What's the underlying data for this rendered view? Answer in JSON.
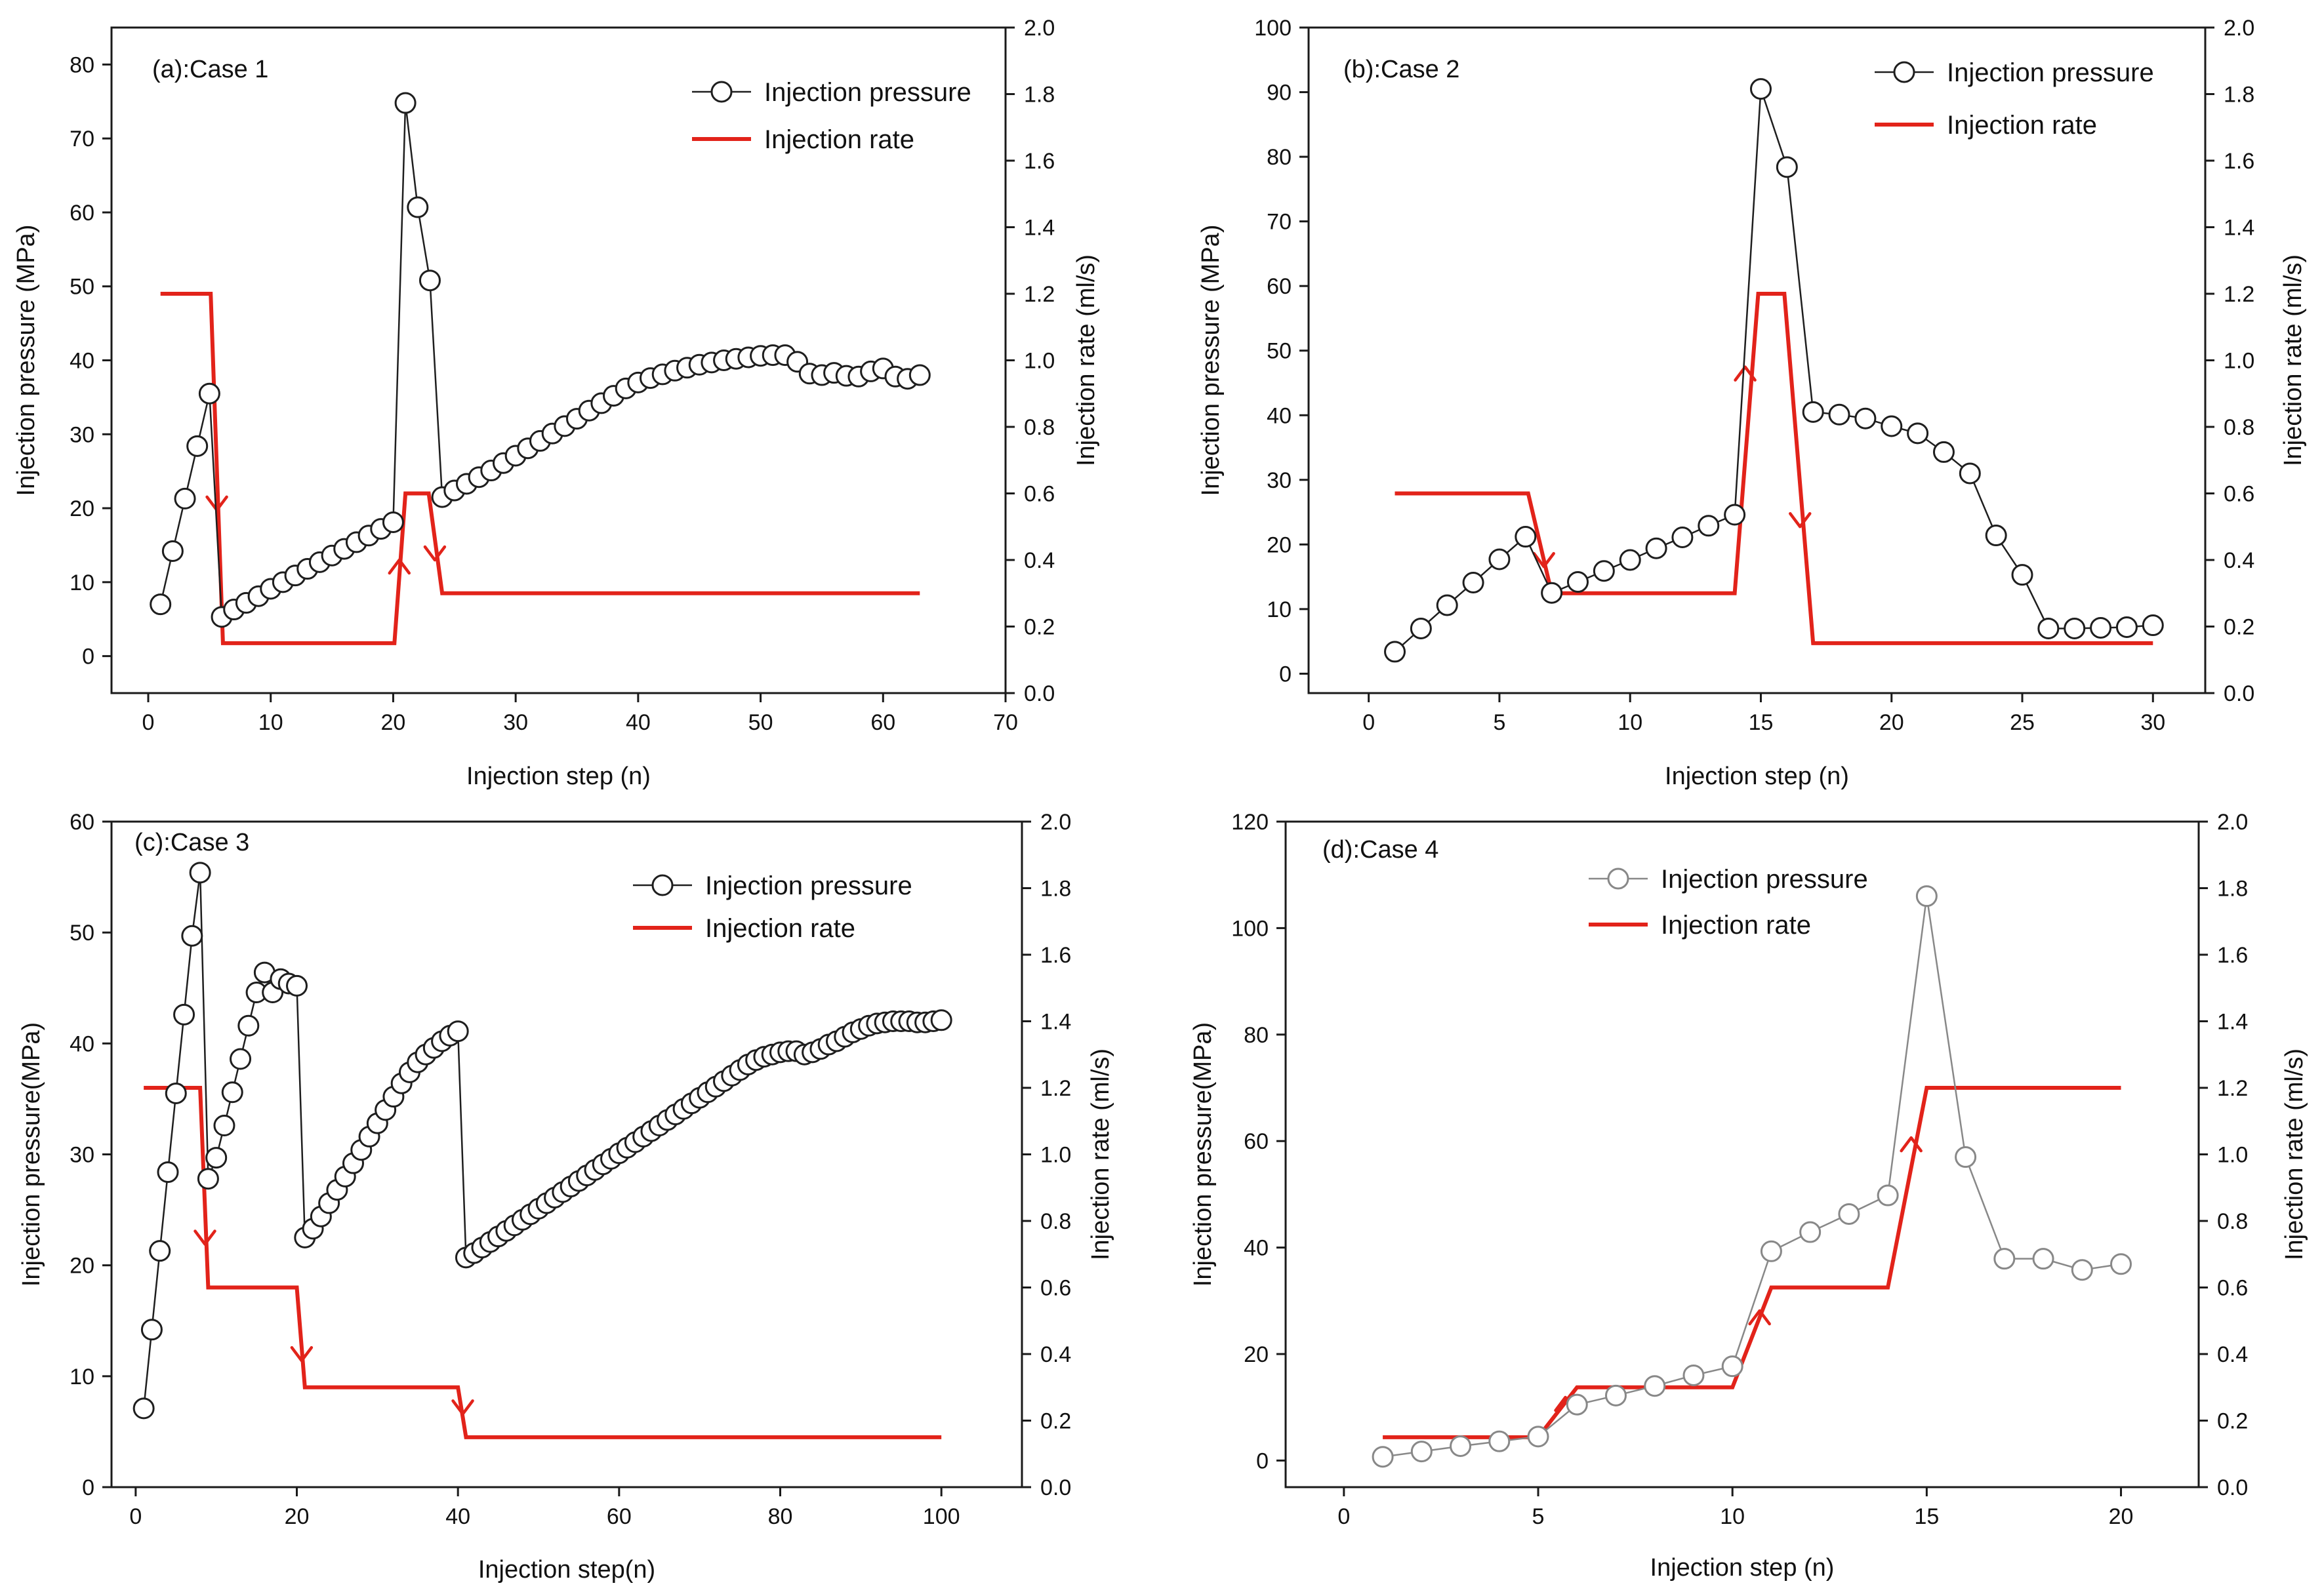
{
  "colors": {
    "rate": "#e2231a",
    "pressure_dark": "#1e1e1e",
    "pressure_grey": "#888888",
    "axis": "#1a1a1a"
  },
  "chart_data": [
    {
      "type": "line",
      "panel_label": "(a):Case 1",
      "xlabel": "Injection step (n)",
      "ylabel_left": "Injection pressure (MPa)",
      "ylabel_right": "Injection rate (ml/s)",
      "xlim": [
        -3,
        70
      ],
      "xticks": [
        0,
        10,
        20,
        30,
        40,
        50,
        60,
        70
      ],
      "ylim_left": [
        -5,
        85
      ],
      "yticks_left": [
        0,
        10,
        20,
        30,
        40,
        50,
        60,
        70,
        80
      ],
      "ylim_right": [
        0.0,
        2.0
      ],
      "yticks_right": [
        "0.0",
        "0.2",
        "0.4",
        "0.6",
        "0.8",
        "1.0",
        "1.2",
        "1.4",
        "1.6",
        "1.8",
        "2.0"
      ],
      "legend": [
        "Injection pressure",
        "Injection rate"
      ],
      "series": [
        {
          "name": "Injection pressure",
          "x": [
            1,
            2,
            3,
            4,
            5,
            6,
            7,
            8,
            9,
            10,
            11,
            12,
            13,
            14,
            15,
            16,
            17,
            18,
            19,
            20,
            21,
            22,
            23,
            24,
            25,
            26,
            27,
            28,
            29,
            30,
            31,
            32,
            33,
            34,
            35,
            36,
            37,
            38,
            39,
            40,
            41,
            42,
            43,
            44,
            45,
            46,
            47,
            48,
            49,
            50,
            51,
            52,
            53,
            54,
            55,
            56,
            57,
            58,
            59,
            60,
            61,
            62,
            63
          ],
          "y": [
            7,
            14.2,
            21.3,
            28.4,
            35.5,
            5.3,
            6.3,
            7.2,
            8.1,
            9.1,
            10,
            10.9,
            11.8,
            12.7,
            13.6,
            14.5,
            15.4,
            16.3,
            17.2,
            18.1,
            74.8,
            60.7,
            50.8,
            21.5,
            22.4,
            23.3,
            24.2,
            25.1,
            26.1,
            27.1,
            28.1,
            29.1,
            30.1,
            31.1,
            32.1,
            33.2,
            34.2,
            35.2,
            36.2,
            37.0,
            37.6,
            38.1,
            38.6,
            39.0,
            39.4,
            39.7,
            40.0,
            40.2,
            40.4,
            40.6,
            40.7,
            40.7,
            39.8,
            38.2,
            38.0,
            38.3,
            37.9,
            37.8,
            38.5,
            38.9,
            37.8,
            37.5,
            38.0
          ]
        },
        {
          "name": "Injection rate",
          "x": [
            1,
            5.1,
            6.1,
            20.1,
            21,
            22.9,
            24,
            63
          ],
          "y": [
            1.2,
            1.2,
            0.15,
            0.15,
            0.6,
            0.6,
            0.3,
            0.3
          ]
        }
      ],
      "arrows": [
        {
          "x": 5.6,
          "y": 0.55,
          "direction": "down"
        },
        {
          "x": 20.5,
          "y": 0.4,
          "direction": "up"
        },
        {
          "x": 23.4,
          "y": 0.4,
          "direction": "down"
        }
      ]
    },
    {
      "type": "line",
      "panel_label": "(b):Case 2",
      "xlabel": "Injection step (n)",
      "ylabel_left": "Injection pressure (MPa)",
      "ylabel_right": "Injection rate (ml/s)",
      "xlim": [
        -2.3,
        32
      ],
      "xticks": [
        0,
        5,
        10,
        15,
        20,
        25,
        30
      ],
      "ylim_left": [
        -3,
        100
      ],
      "yticks_left": [
        0,
        10,
        20,
        30,
        40,
        50,
        60,
        70,
        80,
        90,
        100
      ],
      "ylim_right": [
        0.0,
        2.0
      ],
      "yticks_right": [
        "0.0",
        "0.2",
        "0.4",
        "0.6",
        "0.8",
        "1.0",
        "1.2",
        "1.4",
        "1.6",
        "1.8",
        "2.0"
      ],
      "legend": [
        "Injection pressure",
        "Injection rate"
      ],
      "series": [
        {
          "name": "Injection pressure",
          "x": [
            1,
            2,
            3,
            4,
            5,
            6,
            7,
            8,
            9,
            10,
            11,
            12,
            13,
            14,
            15,
            16,
            17,
            18,
            19,
            20,
            21,
            22,
            23,
            24,
            25,
            26,
            27,
            28,
            29,
            30
          ],
          "y": [
            3.4,
            7,
            10.6,
            14.1,
            17.7,
            21.2,
            12.5,
            14.2,
            15.9,
            17.6,
            19.4,
            21.1,
            22.9,
            24.6,
            90.5,
            78.4,
            40.5,
            40.1,
            39.5,
            38.3,
            37.2,
            34.3,
            31.0,
            21.4,
            15.3,
            7.0,
            7.0,
            7.1,
            7.2,
            7.5
          ]
        },
        {
          "name": "Injection rate",
          "x": [
            1,
            6.1,
            7,
            14,
            14.9,
            15.9,
            17,
            30
          ],
          "y": [
            0.6,
            0.6,
            0.3,
            0.3,
            1.2,
            1.2,
            0.15,
            0.15
          ]
        }
      ],
      "arrows": [
        {
          "x": 6.7,
          "y": 0.38,
          "direction": "down"
        },
        {
          "x": 14.4,
          "y": 0.98,
          "direction": "up"
        },
        {
          "x": 16.5,
          "y": 0.5,
          "direction": "down"
        }
      ]
    },
    {
      "type": "line",
      "panel_label": "(c):Case 3",
      "xlabel": "Injection step(n)",
      "ylabel_left": "Injection pressure(MPa)",
      "ylabel_right": "Injection rate (ml/s)",
      "xlim": [
        -3,
        110
      ],
      "xticks": [
        0,
        20,
        40,
        60,
        80,
        100
      ],
      "ylim_left": [
        0,
        60
      ],
      "yticks_left": [
        0,
        10,
        20,
        30,
        40,
        50,
        60
      ],
      "ylim_right": [
        0.0,
        2.0
      ],
      "yticks_right": [
        "0.0",
        "0.2",
        "0.4",
        "0.6",
        "0.8",
        "1.0",
        "1.2",
        "1.4",
        "1.6",
        "1.8",
        "2.0"
      ],
      "legend": [
        "Injection pressure",
        "Injection rate"
      ],
      "series": [
        {
          "name": "Injection pressure",
          "x": [
            1,
            2,
            3,
            4,
            5,
            6,
            7,
            8,
            9,
            10,
            11,
            12,
            13,
            14,
            15,
            16,
            17,
            18,
            19,
            20,
            21,
            22,
            23,
            24,
            25,
            26,
            27,
            28,
            29,
            30,
            31,
            32,
            33,
            34,
            35,
            36,
            37,
            38,
            39,
            40,
            41,
            42,
            43,
            44,
            45,
            46,
            47,
            48,
            49,
            50,
            51,
            52,
            53,
            54,
            55,
            56,
            57,
            58,
            59,
            60,
            61,
            62,
            63,
            64,
            65,
            66,
            67,
            68,
            69,
            70,
            71,
            72,
            73,
            74,
            75,
            76,
            77,
            78,
            79,
            80,
            81,
            82,
            83,
            84,
            85,
            86,
            87,
            88,
            89,
            90,
            91,
            92,
            93,
            94,
            95,
            96,
            97,
            98,
            99,
            100
          ],
          "y": [
            7.1,
            14.2,
            21.3,
            28.4,
            35.5,
            42.6,
            49.7,
            55.4,
            27.8,
            29.7,
            32.6,
            35.6,
            38.6,
            41.6,
            44.6,
            46.4,
            44.6,
            45.8,
            45.4,
            45.2,
            22.5,
            23.3,
            24.4,
            25.6,
            26.8,
            28.0,
            29.2,
            30.4,
            31.6,
            32.8,
            34.0,
            35.2,
            36.4,
            37.4,
            38.3,
            39.0,
            39.6,
            40.2,
            40.7,
            41.1,
            20.7,
            21.1,
            21.6,
            22.1,
            22.6,
            23.1,
            23.6,
            24.1,
            24.6,
            25.1,
            25.6,
            26.1,
            26.6,
            27.1,
            27.6,
            28.1,
            28.6,
            29.1,
            29.6,
            30.1,
            30.6,
            31.1,
            31.6,
            32.1,
            32.6,
            33.1,
            33.6,
            34.1,
            34.6,
            35.1,
            35.6,
            36.1,
            36.6,
            37.1,
            37.6,
            38.1,
            38.5,
            38.8,
            39.0,
            39.2,
            39.3,
            39.3,
            39.0,
            39.2,
            39.5,
            39.9,
            40.2,
            40.6,
            41.0,
            41.3,
            41.6,
            41.8,
            41.9,
            42.0,
            42.0,
            42.0,
            41.9,
            41.9,
            42.0,
            42.1
          ]
        },
        {
          "name": "Injection rate",
          "x": [
            1,
            8,
            9,
            20,
            21,
            40,
            41,
            100
          ],
          "y": [
            1.2,
            1.2,
            0.6,
            0.6,
            0.3,
            0.3,
            0.15,
            0.15
          ]
        }
      ],
      "arrows": [
        {
          "x": 8.6,
          "y": 0.73,
          "direction": "down"
        },
        {
          "x": 20.6,
          "y": 0.38,
          "direction": "down"
        },
        {
          "x": 40.6,
          "y": 0.22,
          "direction": "down"
        }
      ]
    },
    {
      "type": "line",
      "panel_label": "(d):Case 4",
      "xlabel": "Injection step (n)",
      "ylabel_left": "Injection pressure(MPa)",
      "ylabel_right": "Injection rate (ml/s)",
      "xlim": [
        -1.5,
        22
      ],
      "xticks": [
        0,
        5,
        10,
        15,
        20
      ],
      "ylim_left": [
        -5,
        120
      ],
      "yticks_left": [
        0,
        20,
        40,
        60,
        80,
        100,
        120
      ],
      "ylim_right": [
        0.0,
        2.0
      ],
      "yticks_right": [
        "0.0",
        "0.2",
        "0.4",
        "0.6",
        "0.8",
        "1.0",
        "1.2",
        "1.4",
        "1.6",
        "1.8",
        "2.0"
      ],
      "legend": [
        "Injection pressure",
        "Injection rate"
      ],
      "series": [
        {
          "name": "Injection pressure",
          "x": [
            1,
            2,
            3,
            4,
            5,
            6,
            7,
            8,
            9,
            10,
            11,
            12,
            13,
            14,
            15,
            16,
            17,
            18,
            19,
            20
          ],
          "y": [
            0.7,
            1.7,
            2.7,
            3.6,
            4.5,
            10.5,
            12.2,
            14.0,
            16.0,
            17.7,
            39.3,
            42.9,
            46.3,
            49.8,
            106.0,
            57.0,
            37.9,
            37.9,
            35.8,
            36.9
          ]
        },
        {
          "name": "Injection rate",
          "x": [
            1,
            5,
            6,
            10,
            11,
            14,
            15,
            20
          ],
          "y": [
            0.15,
            0.15,
            0.3,
            0.3,
            0.6,
            0.6,
            1.2,
            1.2
          ]
        }
      ],
      "arrows": [
        {
          "x": 5.7,
          "y": 0.27,
          "direction": "up"
        },
        {
          "x": 10.7,
          "y": 0.53,
          "direction": "up"
        },
        {
          "x": 14.6,
          "y": 1.05,
          "direction": "up"
        }
      ]
    }
  ]
}
